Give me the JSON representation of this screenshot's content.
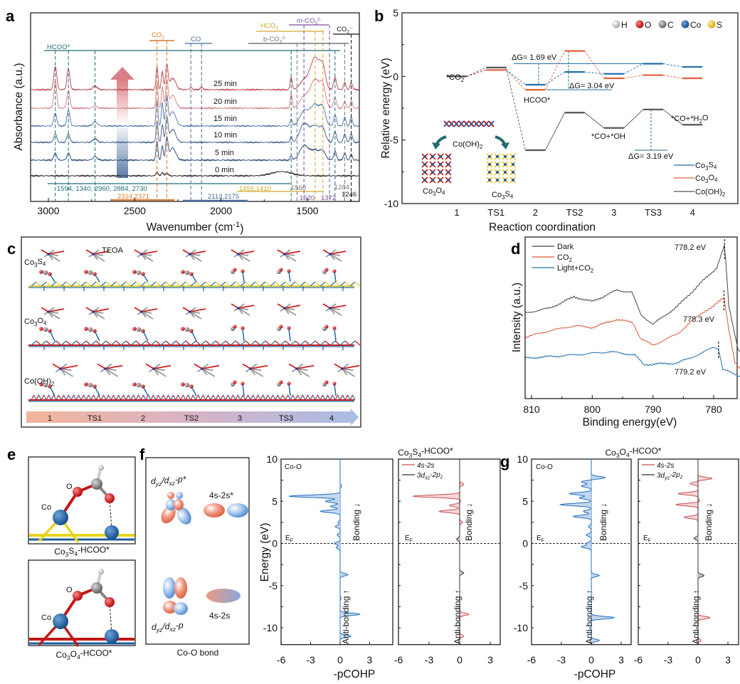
{
  "panel_labels": {
    "a": "a",
    "b": "b",
    "c": "c",
    "d": "d",
    "e": "e",
    "f": "f",
    "g": "g"
  },
  "chart_data": [
    {
      "panel": "a",
      "type": "line",
      "xlabel": "Wavenumber (cm^{-1})",
      "ylabel": "Absorbance (a.u.)",
      "xlim": [
        3103,
        1199
      ],
      "x_reversed": true,
      "xticks": [
        3000,
        2500,
        2000,
        1500
      ],
      "grid": false,
      "peak_positions": [
        2960,
        2884,
        2730,
        2371,
        2340,
        2314,
        2280,
        2175,
        2113,
        1594,
        1520,
        1455,
        1410,
        1340,
        1284,
        1246,
        1650
      ],
      "series": [
        {
          "name": "25 min",
          "color": "#c0505a",
          "offset": 15.7,
          "heights": [
            3.3,
            2.9,
            0.5,
            3.2,
            2.6,
            3.4,
            1.6,
            0.3,
            0.3,
            1.8,
            1.2,
            4.5,
            2.5,
            1.7,
            1.0,
            1.0,
            0
          ]
        },
        {
          "name": "20 min",
          "color": "#d6868d",
          "offset": 13.1,
          "heights": [
            3.7,
            2.5,
            0.3,
            3.6,
            3.0,
            3.8,
            1.8,
            0,
            0,
            2.0,
            1.5,
            4.0,
            2.5,
            1.5,
            1.0,
            1.0,
            0
          ]
        },
        {
          "name": "15 min",
          "color": "#5b80b0",
          "offset": 10.6,
          "heights": [
            1.8,
            2.2,
            0.6,
            3.6,
            3.3,
            4.0,
            2.0,
            0,
            0,
            1.0,
            2.0,
            3.0,
            2.0,
            1.5,
            1.2,
            1.2,
            0
          ]
        },
        {
          "name": "10 min",
          "color": "#4a6a9e",
          "offset": 8.3,
          "heights": [
            1.2,
            1.2,
            0.5,
            3.0,
            2.5,
            3.4,
            1.8,
            0,
            0,
            0.8,
            2.5,
            2.3,
            1.5,
            1.5,
            1.2,
            1.2,
            0
          ]
        },
        {
          "name": "5 min",
          "color": "#3a5580",
          "offset": 5.8,
          "heights": [
            1.0,
            1.0,
            0.5,
            2.6,
            2.0,
            3.0,
            1.7,
            0,
            0,
            0.6,
            2.0,
            1.4,
            1.0,
            1.2,
            1.0,
            0.8,
            0
          ]
        },
        {
          "name": "0 min",
          "color": "#333333",
          "offset": 3.6,
          "heights": [
            0,
            0,
            0,
            0.6,
            0.5,
            0.4,
            0,
            0,
            0,
            0,
            0,
            0,
            0,
            0,
            0,
            0,
            0.6
          ]
        }
      ],
      "annotations": {
        "hcoo": {
          "label": "HCOO*",
          "color": "#1f6e78",
          "values": "1594, 1340, 2960, 2884, 2730"
        },
        "co2": {
          "label": "CO_{2}",
          "color": "#d9772a",
          "values": "2314,2371"
        },
        "co": {
          "label": "CO",
          "color": "#4a6a9e",
          "values": "2113,2175"
        },
        "hco3": {
          "label": "HCO_{3}",
          "color": "#d4a72a",
          "values": "1455,1410"
        },
        "m_co3": {
          "label": "m-CO_{3}^{2-}",
          "color": "#7a4fa0",
          "values": [
            "1520",
            "1372"
          ]
        },
        "b_co3": {
          "label": "b-CO_{3}^{2-}",
          "color": "#777777",
          "values": [
            "1560",
            "1284"
          ]
        },
        "co2_rad": {
          "label": "CO_{2}^{·-}",
          "color": "#111111",
          "values": "1246"
        }
      }
    },
    {
      "panel": "b",
      "type": "line",
      "xlabel": "Reaction coordination",
      "ylabel": "Relative energy (eV)",
      "categories": [
        "1",
        "TS1",
        "2",
        "TS2",
        "3",
        "TS3",
        "4"
      ],
      "ylim": [
        -10,
        5
      ],
      "yticks": [
        5,
        0,
        -5,
        -10
      ],
      "legend_position": "bottom-right",
      "series": [
        {
          "name": "Co_{3}S_{4}",
          "color": "#1f6fae",
          "values": [
            0,
            0.5,
            -0.65,
            0.35,
            0.2,
            1.0,
            0.75
          ]
        },
        {
          "name": "Co_{3}O_{4}",
          "color": "#e0603a",
          "values": [
            0,
            0.5,
            -1.05,
            2.0,
            -0.15,
            0.1,
            -0.15
          ]
        },
        {
          "name": "Co(OH)_{2}",
          "color": "#555555",
          "values": [
            0,
            0.7,
            -5.8,
            -2.85,
            -4.05,
            -2.6,
            -3.8
          ]
        }
      ],
      "annotations": {
        "co2_star": "*CO_{2}",
        "dg1": "ΔG= 1.69 eV",
        "dg2": "ΔG= 3.04 eV",
        "dg3": "ΔG= 3.19 eV",
        "hcoo": "HCOO*",
        "co_oh": "*CO+*OH",
        "co_h2o": "*CO+*H_{2}O",
        "inset_parent": "Co(OH)_{2}",
        "inset_left": "Co_{3}O_{4}",
        "inset_right": "Co_{3}S_{4}"
      },
      "atom_legend": [
        {
          "label": "H",
          "color": "#e8e8e8"
        },
        {
          "label": "O",
          "color": "#d61a1a"
        },
        {
          "label": "C",
          "color": "#808080"
        },
        {
          "label": "Co",
          "color": "#2c63b5"
        },
        {
          "label": "S",
          "color": "#f2c21a"
        }
      ]
    },
    {
      "panel": "d",
      "type": "line",
      "xlabel": "Binding energy(eV)",
      "ylabel": "Intensity (a.u.)",
      "xlim": [
        811,
        775
      ],
      "x_reversed": true,
      "xticks": [
        810,
        800,
        790,
        780
      ],
      "legend_position": "top-left",
      "series": [
        {
          "name": "Dark",
          "color": "#444444",
          "points": [
            [
              811,
              0.53
            ],
            [
              807,
              0.56
            ],
            [
              803,
              0.63
            ],
            [
              800,
              0.6
            ],
            [
              796,
              0.67
            ],
            [
              793.5,
              0.66
            ],
            [
              792,
              0.52
            ],
            [
              790,
              0.46
            ],
            [
              786,
              0.57
            ],
            [
              782,
              0.72
            ],
            [
              779.5,
              0.81
            ],
            [
              778.2,
              0.95
            ],
            [
              777.5,
              0.57
            ],
            [
              776,
              0.31
            ],
            [
              775,
              0.26
            ]
          ]
        },
        {
          "name": "CO_{2}",
          "color": "#d9583a",
          "points": [
            [
              811,
              0.38
            ],
            [
              807,
              0.42
            ],
            [
              803,
              0.45
            ],
            [
              800,
              0.44
            ],
            [
              796,
              0.49
            ],
            [
              793.3,
              0.47
            ],
            [
              792,
              0.37
            ],
            [
              790,
              0.33
            ],
            [
              786,
              0.4
            ],
            [
              782,
              0.53
            ],
            [
              780,
              0.57
            ],
            [
              778.3,
              0.63
            ],
            [
              777.5,
              0.43
            ],
            [
              776.5,
              0.22
            ],
            [
              775,
              0.15
            ]
          ]
        },
        {
          "name": "Light+CO_{2}",
          "color": "#1f6fae",
          "points": [
            [
              811,
              0.25
            ],
            [
              803,
              0.27
            ],
            [
              797,
              0.29
            ],
            [
              793,
              0.27
            ],
            [
              791.5,
              0.21
            ],
            [
              786,
              0.22
            ],
            [
              782,
              0.28
            ],
            [
              780,
              0.32
            ],
            [
              779.2,
              0.31
            ],
            [
              778.5,
              0.18
            ],
            [
              775,
              0.13
            ]
          ]
        }
      ],
      "peak_labels": [
        {
          "label": "778.2 eV",
          "energy": 778.2
        },
        {
          "label": "778.3 eV",
          "energy": 778.3
        },
        {
          "label": "779.2 eV",
          "energy": 779.2
        }
      ]
    },
    {
      "panel": "f-left",
      "type": "area",
      "title": "Co_{3}S_{4}-HCOO*",
      "label": "Co-O",
      "ylabel": "Energy (eV)",
      "xlabel": "-pCOHP",
      "ylim": [
        -12,
        10
      ],
      "yticks": [
        10,
        5,
        0,
        -5,
        -10
      ],
      "xticks": [
        -6,
        -3,
        0,
        3
      ],
      "fermi": "E_{F}",
      "bonding": "Bonding ↓",
      "antibonding": "Anti-bonding ↑",
      "series": [
        {
          "name": "Co-O",
          "color": "#1f6fc0",
          "peaks": [
            [
              6.8,
              0.15
            ],
            [
              5.6,
              -5.2
            ],
            [
              5.0,
              -1.5
            ],
            [
              4.4,
              -1.0
            ],
            [
              3.8,
              -2.0
            ],
            [
              2.5,
              -0.2
            ],
            [
              2.0,
              -0.5
            ],
            [
              1.0,
              -0.3
            ],
            [
              0.0,
              -0.6
            ],
            [
              -0.5,
              -0.4
            ],
            [
              -3.7,
              0.8
            ],
            [
              -6.5,
              0.1
            ],
            [
              -8.4,
              2.0
            ],
            [
              -11.0,
              1.1
            ]
          ]
        }
      ]
    },
    {
      "panel": "f-right",
      "type": "area",
      "xticks": [
        -6,
        -3,
        0,
        3
      ],
      "ylim": [
        -12,
        10
      ],
      "fermi": "E_{F}",
      "bonding": "Bonding ↓",
      "antibonding": "Anti-bonding ↑",
      "series": [
        {
          "name": "4s-2s",
          "color": "#c8505a",
          "peaks": [
            [
              7.0,
              0.4
            ],
            [
              5.6,
              -4.6
            ],
            [
              5.0,
              0.1
            ],
            [
              4.5,
              -1.0
            ],
            [
              3.8,
              -2.0
            ],
            [
              2.5,
              0.3
            ],
            [
              -8.4,
              0.9
            ],
            [
              -11.0,
              0.4
            ]
          ]
        },
        {
          "name": "3d_{xz}-2p_{z}",
          "color": "#333333",
          "peaks": [
            [
              0.5,
              -0.3
            ],
            [
              -3.5,
              0.4
            ]
          ]
        }
      ]
    },
    {
      "panel": "g-left",
      "type": "area",
      "title": "Co_{3}O_{4}-HCOO*",
      "label": "Co-O",
      "xlabel": "-pCOHP",
      "ylim": [
        -12,
        10
      ],
      "yticks": [
        10,
        5,
        0,
        -5,
        -10
      ],
      "xticks": [
        -6,
        -3,
        0,
        3
      ],
      "fermi": "E_{F}",
      "bonding": "Bonding ↓",
      "antibonding": "Anti-bonding ↑",
      "series": [
        {
          "name": "Co-O",
          "color": "#1f6fc0",
          "peaks": [
            [
              7.8,
              1.4
            ],
            [
              7.3,
              -1.0
            ],
            [
              6.8,
              -1.0
            ],
            [
              5.9,
              -2.2
            ],
            [
              5.4,
              -1.2
            ],
            [
              4.6,
              -3.1
            ],
            [
              3.8,
              -0.8
            ],
            [
              3.2,
              -1.8
            ],
            [
              2.0,
              -0.3
            ],
            [
              1.0,
              -0.5
            ],
            [
              0.0,
              -0.5
            ],
            [
              -0.4,
              -1.0
            ],
            [
              -3.8,
              0.8
            ],
            [
              -8.8,
              2.3
            ],
            [
              -11.5,
              0.8
            ]
          ]
        }
      ]
    },
    {
      "panel": "g-right",
      "type": "area",
      "xticks": [
        -6,
        -3,
        0,
        3
      ],
      "ylim": [
        -12,
        10
      ],
      "fermi": "E_{F}",
      "bonding": "Bonding ↓",
      "antibonding": "Anti-bonding ↑",
      "series": [
        {
          "name": "4s-2s",
          "color": "#c8505a",
          "peaks": [
            [
              7.7,
              1.4
            ],
            [
              7.1,
              -0.8
            ],
            [
              5.9,
              -2.0
            ],
            [
              5.0,
              0.2
            ],
            [
              4.6,
              -2.2
            ],
            [
              3.1,
              -1.4
            ],
            [
              -8.8,
              1.2
            ],
            [
              -11.5,
              0.3
            ]
          ]
        },
        {
          "name": "3d_{yz}-2p_{z}",
          "color": "#333333",
          "peaks": [
            [
              0.6,
              -0.4
            ],
            [
              -3.8,
              0.6
            ]
          ]
        }
      ]
    }
  ],
  "panel_c": {
    "rows": [
      "Co_{3}S_{4}",
      "Co_{3}O_{4}",
      "Co(OH)_{2}"
    ],
    "molecule_label": "TEOA",
    "steps": [
      "1",
      "TS1",
      "2",
      "TS2",
      "3",
      "TS3",
      "4"
    ]
  },
  "panel_e": {
    "top_caption": "Co_{3}S_{4}-HCOO*",
    "bottom_caption": "Co_{3}O_{4}-HCOO*",
    "atom_o": "O",
    "atom_co": "Co"
  },
  "panel_f": {
    "antibonding_pi": "d_{yz}/d_{xz}-p*",
    "antibonding_s": "4s-2s*",
    "bonding_pi": "d_{yz}/d_{xz}-p",
    "bonding_s": "4s-2s",
    "caption": "Co-O bond"
  }
}
